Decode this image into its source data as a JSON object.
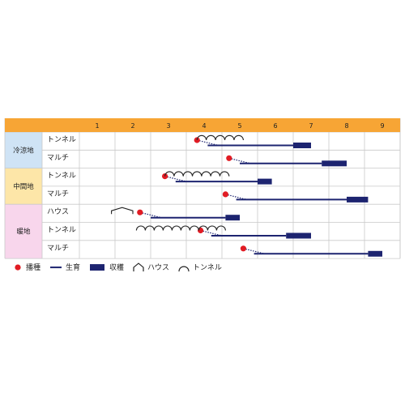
{
  "chart_data": {
    "type": "gantt",
    "months": [
      "1",
      "2",
      "3",
      "4",
      "5",
      "6",
      "7",
      "8",
      "9"
    ],
    "regions": [
      {
        "name": "冷涼地",
        "color": "#cfe3f5",
        "rows": [
          {
            "method": "トンネル",
            "sow": 4.3,
            "grow": [
              4.3,
              7.0
            ],
            "harvest": [
              7.0,
              7.5
            ],
            "covers": [
              {
                "kind": "tunnel",
                "range": [
                  4.3,
                  5.6
                ]
              }
            ]
          },
          {
            "method": "マルチ",
            "sow": 5.2,
            "grow": [
              5.2,
              7.8
            ],
            "harvest": [
              7.8,
              8.5
            ],
            "covers": []
          }
        ]
      },
      {
        "name": "中間地",
        "color": "#fde6a8",
        "rows": [
          {
            "method": "トンネル",
            "sow": 3.4,
            "grow": [
              3.4,
              6.0
            ],
            "harvest": [
              6.0,
              6.4
            ],
            "covers": [
              {
                "kind": "tunnel",
                "range": [
                  3.4,
                  5.2
                ]
              }
            ]
          },
          {
            "method": "マルチ",
            "sow": 5.1,
            "grow": [
              5.1,
              8.5
            ],
            "harvest": [
              8.5,
              9.1
            ],
            "covers": []
          }
        ]
      },
      {
        "name": "暖地",
        "color": "#f8d6ec",
        "rows": [
          {
            "method": "ハウス",
            "sow": 2.7,
            "grow": [
              2.7,
              5.1
            ],
            "harvest": [
              5.1,
              5.5
            ],
            "covers": [
              {
                "kind": "house",
                "range": [
                  1.9,
                  2.5
                ]
              }
            ]
          },
          {
            "method": "トンネル",
            "sow": 4.4,
            "grow": [
              4.4,
              6.8
            ],
            "harvest": [
              6.8,
              7.5
            ],
            "covers": [
              {
                "kind": "tunnel",
                "range": [
                  2.6,
                  5.1
                ]
              }
            ]
          },
          {
            "method": "マルチ",
            "sow": 5.6,
            "grow": [
              5.6,
              9.1
            ],
            "harvest": [
              9.1,
              9.5
            ],
            "covers": []
          }
        ]
      }
    ]
  },
  "legend": [
    {
      "key": "sow",
      "label": "播種"
    },
    {
      "key": "grow",
      "label": "生育"
    },
    {
      "key": "harvest",
      "label": "収穫"
    },
    {
      "key": "house",
      "label": "ハウス"
    },
    {
      "key": "tunnel",
      "label": "トンネル"
    }
  ],
  "colors": {
    "header": "#f7a535",
    "line": "#1d2470",
    "harvest": "#1d2470",
    "sow": "#e11c24",
    "grid": "#c9c9c9",
    "dots": "#1d2470",
    "cover": "#222222"
  }
}
